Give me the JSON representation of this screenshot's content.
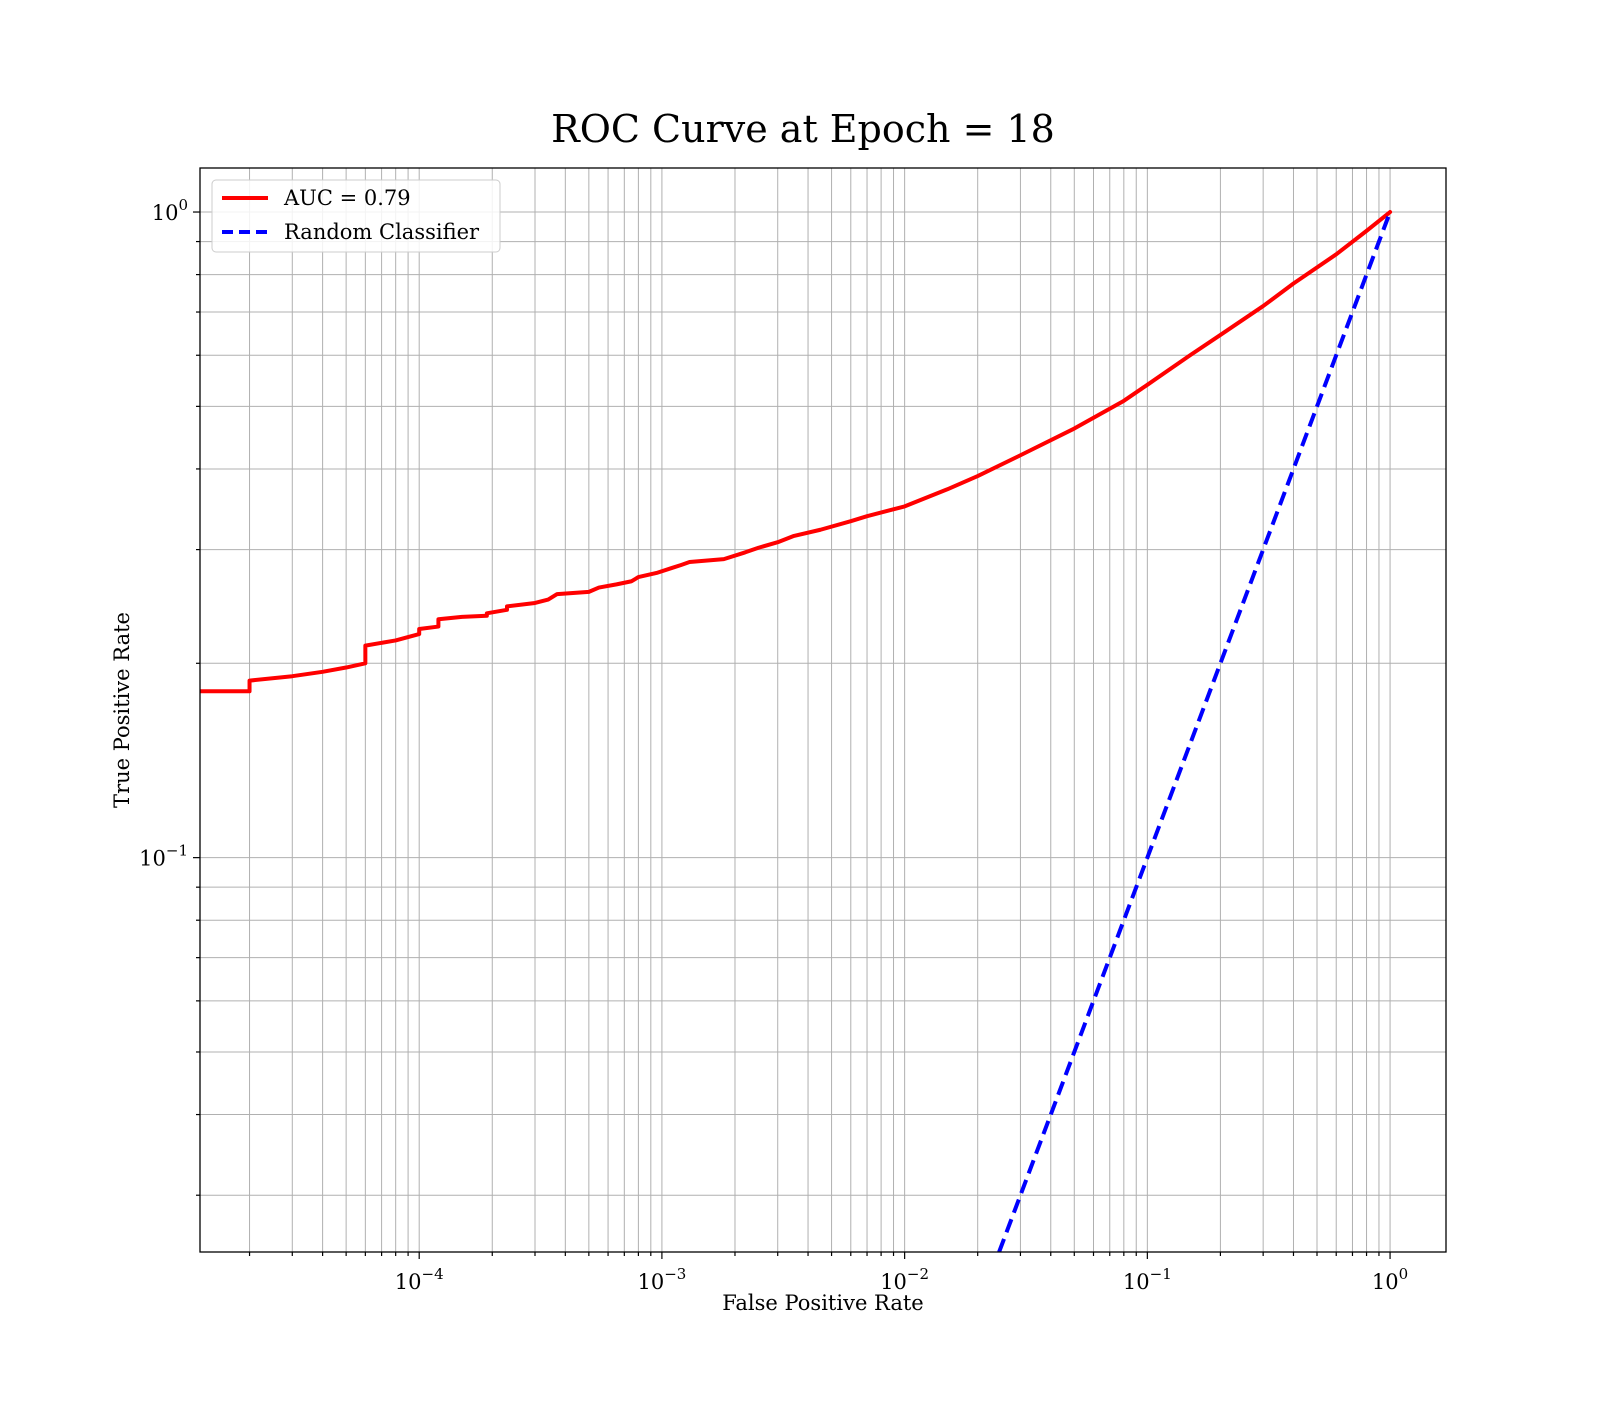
{
  "chart_data": {
    "type": "line",
    "title": "ROC Curve at Epoch = 18",
    "xlabel": "False Positive Rate",
    "ylabel": "True Positive Rate",
    "xscale": "log",
    "yscale": "log",
    "xlim": [
      1.25e-05,
      1.7
    ],
    "ylim": [
      0.0245,
      1.17
    ],
    "grid": "major and minor, both axes",
    "legend_location": "upper-left",
    "x_ticks": [
      {
        "base": "10",
        "exp": "−4",
        "value": 0.0001
      },
      {
        "base": "10",
        "exp": "−3",
        "value": 0.001
      },
      {
        "base": "10",
        "exp": "−2",
        "value": 0.01
      },
      {
        "base": "10",
        "exp": "−1",
        "value": 0.1
      },
      {
        "base": "10",
        "exp": "0",
        "value": 1
      }
    ],
    "y_ticks": [
      {
        "base": "10",
        "exp": "−1",
        "value": 0.1
      },
      {
        "base": "10",
        "exp": "0",
        "value": 1
      }
    ],
    "series": [
      {
        "name": "AUC = 0.79",
        "color": "#ff0000",
        "style": "solid",
        "points": [
          [
            1.25e-05,
            0.181
          ],
          [
            2e-05,
            0.181
          ],
          [
            2e-05,
            0.188
          ],
          [
            3e-05,
            0.191
          ],
          [
            4e-05,
            0.194
          ],
          [
            5e-05,
            0.197
          ],
          [
            6e-05,
            0.2
          ],
          [
            6e-05,
            0.213
          ],
          [
            8e-05,
            0.217
          ],
          [
            0.0001,
            0.222
          ],
          [
            0.0001,
            0.226
          ],
          [
            0.00012,
            0.228
          ],
          [
            0.00012,
            0.234
          ],
          [
            0.00015,
            0.236
          ],
          [
            0.00019,
            0.237
          ],
          [
            0.00019,
            0.239
          ],
          [
            0.00023,
            0.242
          ],
          [
            0.00023,
            0.245
          ],
          [
            0.0003,
            0.248
          ],
          [
            0.00034,
            0.251
          ],
          [
            0.00037,
            0.256
          ],
          [
            0.0005,
            0.258
          ],
          [
            0.00055,
            0.262
          ],
          [
            0.00065,
            0.265
          ],
          [
            0.00075,
            0.268
          ],
          [
            0.0008,
            0.272
          ],
          [
            0.00095,
            0.276
          ],
          [
            0.0011,
            0.281
          ],
          [
            0.0012,
            0.284
          ],
          [
            0.0013,
            0.287
          ],
          [
            0.0018,
            0.29
          ],
          [
            0.0022,
            0.297
          ],
          [
            0.0025,
            0.302
          ],
          [
            0.003,
            0.308
          ],
          [
            0.0035,
            0.315
          ],
          [
            0.0045,
            0.322
          ],
          [
            0.006,
            0.332
          ],
          [
            0.007,
            0.338
          ],
          [
            0.01,
            0.35
          ],
          [
            0.015,
            0.372
          ],
          [
            0.02,
            0.39
          ],
          [
            0.03,
            0.42
          ],
          [
            0.05,
            0.462
          ],
          [
            0.08,
            0.51
          ],
          [
            0.1,
            0.54
          ],
          [
            0.15,
            0.6
          ],
          [
            0.2,
            0.645
          ],
          [
            0.3,
            0.715
          ],
          [
            0.4,
            0.775
          ],
          [
            0.6,
            0.86
          ],
          [
            0.8,
            0.935
          ],
          [
            1.0,
            1.0
          ]
        ]
      },
      {
        "name": "Random Classifier",
        "color": "#0000ff",
        "style": "dashed",
        "points": [
          [
            0.0245,
            0.0245
          ],
          [
            1.0,
            1.0
          ]
        ]
      }
    ]
  }
}
